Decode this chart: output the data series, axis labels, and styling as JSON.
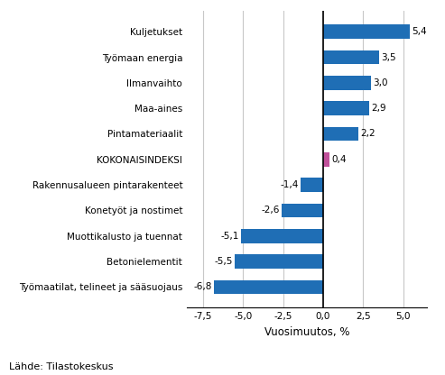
{
  "categories": [
    "Työmaatilat, telineet ja sääsuojaus",
    "Betonielementit",
    "Muottikalusto ja tuennat",
    "Konetyöt ja nostimet",
    "Rakennusalueen pintarakenteet",
    "KOKONAISINDEKSI",
    "Pintamateriaalit",
    "Maa-aines",
    "Ilmanvaihto",
    "Työmaan energia",
    "Kuljetukset"
  ],
  "values": [
    -6.8,
    -5.5,
    -5.1,
    -2.6,
    -1.4,
    0.4,
    2.2,
    2.9,
    3.0,
    3.5,
    5.4
  ],
  "bar_colors": [
    "#1f6eb5",
    "#1f6eb5",
    "#1f6eb5",
    "#1f6eb5",
    "#1f6eb5",
    "#c0509a",
    "#1f6eb5",
    "#1f6eb5",
    "#1f6eb5",
    "#1f6eb5",
    "#1f6eb5"
  ],
  "xlabel": "Vuosimuutos, %",
  "xlim": [
    -8.5,
    6.5
  ],
  "xticks": [
    -7.5,
    -5.0,
    -2.5,
    0.0,
    2.5,
    5.0
  ],
  "xtick_labels": [
    "-7,5",
    "-5,0",
    "-2,5",
    "0,0",
    "2,5",
    "5,0"
  ],
  "source": "Lähde: Tilastokeskus",
  "label_fontsize": 7.5,
  "xlabel_fontsize": 8.5,
  "source_fontsize": 8.0,
  "background_color": "#ffffff",
  "grid_color": "#c8c8c8",
  "value_labels": [
    "-6,8",
    "-5,5",
    "-5,1",
    "-2,6",
    "-1,4",
    "0,4",
    "2,2",
    "2,9",
    "3,0",
    "3,5",
    "5,4"
  ]
}
